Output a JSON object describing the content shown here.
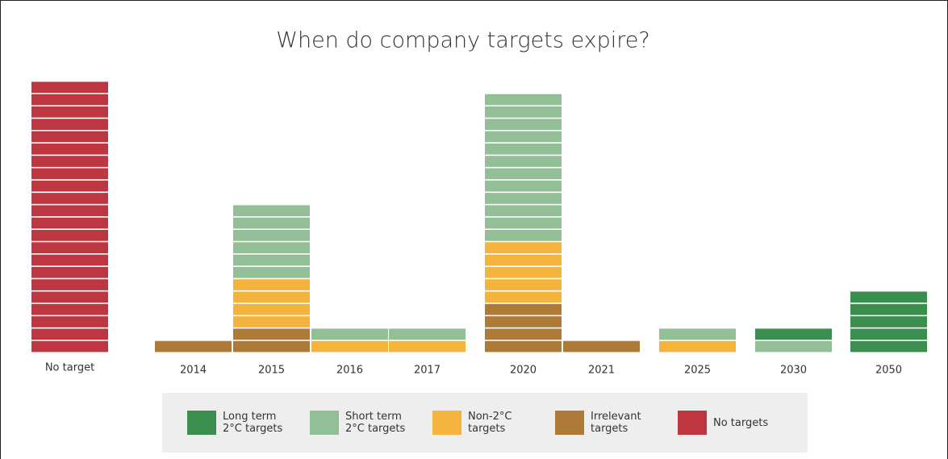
{
  "chart_data": {
    "type": "unit-stacked-bar",
    "title": "When do company targets expire?",
    "categories": [
      "No target",
      "2014",
      "2015",
      "2016",
      "2017",
      "2020",
      "2021",
      "2025",
      "2030",
      "2050"
    ],
    "series": [
      {
        "name": "Irrelevant targets",
        "color": "#ad7a38",
        "values": [
          0,
          1,
          2,
          0,
          0,
          4,
          1,
          0,
          0,
          0
        ]
      },
      {
        "name": "Non-2°C targets",
        "color": "#f3b33d",
        "values": [
          0,
          0,
          4,
          1,
          1,
          5,
          0,
          1,
          0,
          0
        ]
      },
      {
        "name": "Short term 2°C targets",
        "color": "#93bf96",
        "values": [
          0,
          0,
          6,
          1,
          1,
          12,
          0,
          1,
          1,
          0
        ]
      },
      {
        "name": "Long term 2°C targets",
        "color": "#3a8f4e",
        "values": [
          0,
          0,
          0,
          0,
          0,
          0,
          0,
          0,
          1,
          5
        ]
      },
      {
        "name": "No targets",
        "color": "#bd3640",
        "values": [
          22,
          0,
          0,
          0,
          0,
          0,
          0,
          0,
          0,
          0
        ]
      }
    ],
    "legend_order": [
      3,
      2,
      1,
      0,
      4
    ]
  }
}
